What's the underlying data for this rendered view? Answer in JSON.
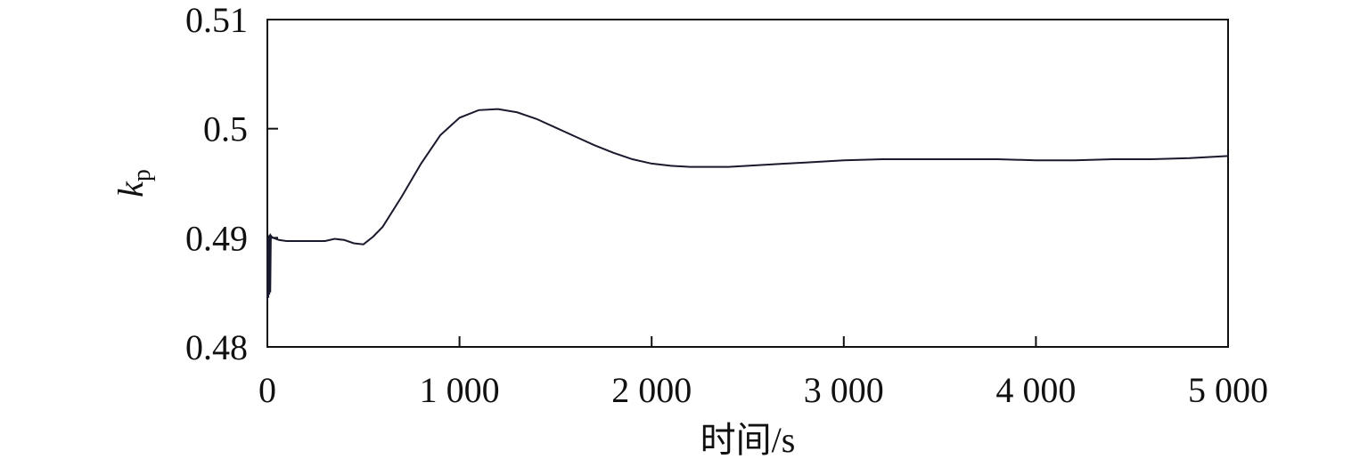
{
  "chart_data": {
    "type": "line",
    "title": "",
    "xlabel": "时间/s",
    "ylabel": "k",
    "ylabel_subscript": "p",
    "xlim": [
      0,
      5000
    ],
    "ylim": [
      0.48,
      0.51
    ],
    "x_ticks": [
      0,
      1000,
      2000,
      3000,
      4000,
      5000
    ],
    "x_tick_labels": [
      "0",
      "1 000",
      "2 000",
      "3 000",
      "4 000",
      "5 000"
    ],
    "y_ticks": [
      0.48,
      0.49,
      0.5,
      0.51
    ],
    "y_tick_labels": [
      "0.48",
      "0.49",
      "0.5",
      "0.51"
    ],
    "grid": false,
    "legend": "none",
    "line_color": "#1a1a2e",
    "series": [
      {
        "x": [
          0,
          2,
          5,
          8,
          10,
          12,
          15,
          18,
          22,
          30,
          60,
          100,
          200,
          300,
          350,
          400,
          450,
          500,
          550,
          600,
          700,
          800,
          900,
          1000,
          1100,
          1200,
          1300,
          1400,
          1500,
          1600,
          1700,
          1800,
          1900,
          2000,
          2100,
          2200,
          2300,
          2400,
          2500,
          2600,
          2700,
          2800,
          2900,
          3000,
          3200,
          3400,
          3600,
          3800,
          4000,
          4200,
          4400,
          4600,
          4800,
          5000
        ],
        "y": [
          0.4842,
          0.49,
          0.4845,
          0.4902,
          0.4848,
          0.4903,
          0.485,
          0.4902,
          0.4901,
          0.49,
          0.4898,
          0.4897,
          0.4897,
          0.4897,
          0.4899,
          0.4898,
          0.4895,
          0.4894,
          0.4901,
          0.491,
          0.4938,
          0.4968,
          0.4994,
          0.501,
          0.5017,
          0.5018,
          0.5015,
          0.5009,
          0.5001,
          0.4993,
          0.4985,
          0.4978,
          0.4972,
          0.4968,
          0.4966,
          0.4965,
          0.4965,
          0.4965,
          0.4966,
          0.4967,
          0.4968,
          0.4969,
          0.497,
          0.4971,
          0.4972,
          0.4972,
          0.4972,
          0.4972,
          0.4971,
          0.4971,
          0.4972,
          0.4972,
          0.4973,
          0.4975
        ]
      }
    ]
  }
}
